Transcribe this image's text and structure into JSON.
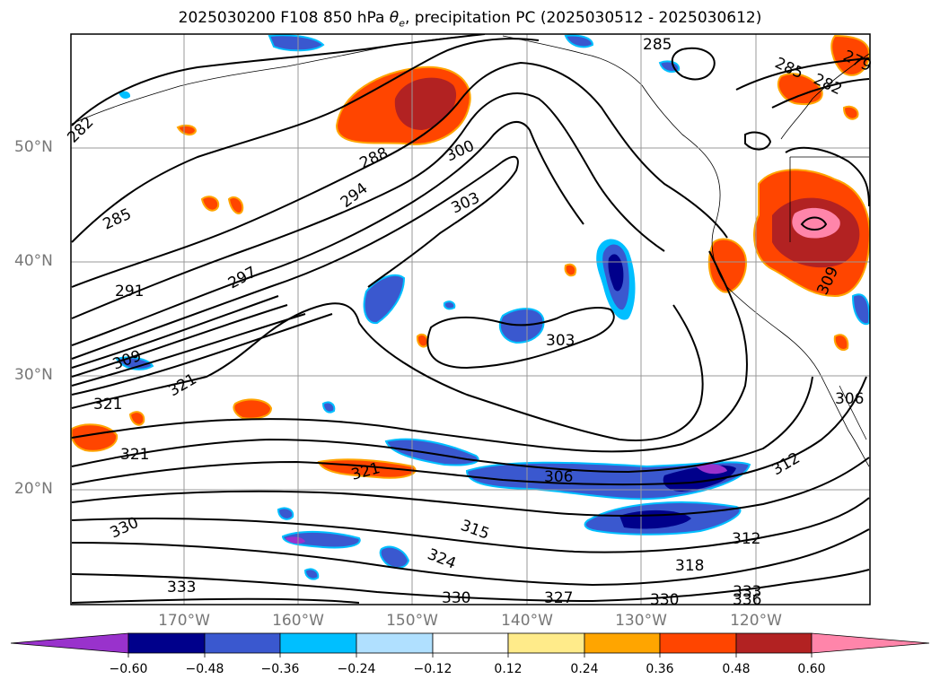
{
  "title_prefix": "2025030200 F108 850 hPa ",
  "title_theta": "θ",
  "title_sub": "e",
  "title_suffix": ", precipitation PC (2025030512 - 2025030612)",
  "lat_labels": [
    "50°N",
    "40°N",
    "30°N",
    "20°N"
  ],
  "lon_labels": [
    "170°W",
    "160°W",
    "150°W",
    "140°W",
    "130°W",
    "120°W"
  ],
  "contour_labels": [
    "282",
    "285",
    "285",
    "282",
    "279",
    "285",
    "288",
    "291",
    "294",
    "297",
    "300",
    "303",
    "303",
    "306",
    "309",
    "309",
    "306",
    "312",
    "312",
    "315",
    "318",
    "321",
    "321",
    "321",
    "321",
    "324",
    "327",
    "330",
    "330",
    "330",
    "333",
    "333",
    "336"
  ],
  "colorbar": {
    "ticks": [
      "−0.60",
      "−0.48",
      "−0.36",
      "−0.24",
      "−0.12",
      "0.12",
      "0.24",
      "0.36",
      "0.48",
      "0.60"
    ],
    "colors": [
      "#9932cc",
      "#00008b",
      "#3a58cf",
      "#00bfff",
      "#b0e0ff",
      "#ffffff",
      "#ffeb8a",
      "#ffa500",
      "#ff4500",
      "#b22222",
      "#ff85aa"
    ]
  },
  "chart_data": {
    "type": "map",
    "variable": "850 hPa theta_e contours with precipitation PC shading",
    "lat_range": [
      10,
      60
    ],
    "lon_range": [
      -180,
      -110
    ],
    "colorbar_levels": [
      -0.6,
      -0.48,
      -0.36,
      -0.24,
      -0.12,
      0.12,
      0.24,
      0.36,
      0.48,
      0.6
    ]
  }
}
